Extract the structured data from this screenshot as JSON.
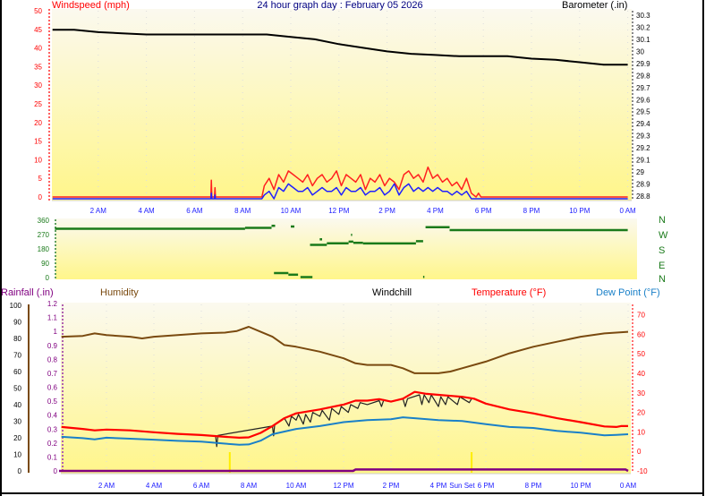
{
  "header": {
    "title": "24 hour graph day : February 05 2026",
    "windspeed_label": "Windspeed (mph)",
    "barometer_label": "Barometer (.in)"
  },
  "legend": {
    "rainfall": "Rainfall (.in)",
    "humidity": "Humidity",
    "windchill": "Windchill",
    "temperature": "Temperature (°F)",
    "dewpoint": "Dew Point (°F)"
  },
  "compass": [
    "N",
    "W",
    "S",
    "E",
    "N"
  ],
  "colors": {
    "gust": "#ff2020",
    "wind": "#2020ff",
    "barometer": "#000000",
    "direction": "#1a7a1a",
    "humidity": "#7a4a10",
    "temperature": "#ff0000",
    "dewpoint": "#1a80c8",
    "windchill": "#222222",
    "rainfall": "#800080",
    "title": "#000080",
    "time_label": "#2020ff",
    "sun": "#ffee00"
  },
  "chart_data": [
    {
      "type": "line",
      "title": "Windspeed / Barometer",
      "x_ticks": [
        "2 AM",
        "4 AM",
        "6 AM",
        "8 AM",
        "10 AM",
        "12 PM",
        "2 PM",
        "4 PM",
        "6 PM",
        "8 PM",
        "10 PM",
        "0 AM"
      ],
      "y_left": {
        "label": "Windspeed (mph)",
        "ticks": [
          "0",
          "5",
          "10",
          "15",
          "20",
          "25",
          "30",
          "35",
          "40",
          "45",
          "50"
        ],
        "range": [
          0,
          50
        ]
      },
      "y_right": {
        "label": "Barometer (.in)",
        "ticks": [
          "28.8",
          "28.9",
          "29",
          "29.1",
          "29.2",
          "29.3",
          "29.4",
          "29.5",
          "29.6",
          "29.7",
          "29.8",
          "29.9",
          "30",
          "30.1",
          "30.2",
          "30.3"
        ],
        "range": [
          28.8,
          30.3
        ]
      },
      "barometer": [
        [
          0.1,
          30.18
        ],
        [
          1,
          30.18
        ],
        [
          2,
          30.16
        ],
        [
          3,
          30.15
        ],
        [
          4,
          30.14
        ],
        [
          6,
          30.14
        ],
        [
          8,
          30.14
        ],
        [
          9,
          30.14
        ],
        [
          10,
          30.12
        ],
        [
          11,
          30.1
        ],
        [
          12,
          30.06
        ],
        [
          13,
          30.03
        ],
        [
          14,
          30.0
        ],
        [
          15,
          29.98
        ],
        [
          16,
          29.97
        ],
        [
          17,
          29.96
        ],
        [
          18,
          29.96
        ],
        [
          19,
          29.96
        ],
        [
          20,
          29.94
        ],
        [
          21,
          29.93
        ],
        [
          22,
          29.91
        ],
        [
          23,
          29.89
        ],
        [
          24,
          29.89
        ]
      ],
      "gust_start_hour": 8.9,
      "step_hours": 0.2,
      "gust": [
        3,
        5,
        2,
        6,
        4,
        7,
        6,
        5,
        4,
        6,
        3,
        5,
        6,
        4,
        5,
        7,
        3,
        6,
        5,
        4,
        6,
        2,
        5,
        4,
        6,
        3,
        5,
        4,
        2,
        6,
        7,
        5,
        6,
        4,
        8,
        5,
        6,
        4,
        5,
        3,
        4,
        2,
        5,
        1
      ],
      "wind": [
        1,
        2,
        0,
        3,
        2,
        4,
        3,
        2,
        2,
        3,
        1,
        2,
        3,
        2,
        2,
        3,
        1,
        3,
        2,
        2,
        3,
        1,
        2,
        2,
        3,
        1,
        2,
        4,
        1,
        3,
        4,
        2,
        3,
        2,
        3,
        2,
        3,
        2,
        2,
        1,
        2,
        1,
        2,
        0
      ],
      "early_spikes": [
        {
          "hour": 6.7,
          "gust": 4.5,
          "wind": 1.5
        },
        {
          "hour": 6.85,
          "gust": 2.5,
          "wind": 1
        }
      ]
    },
    {
      "type": "scatter",
      "title": "Wind Direction",
      "y_ticks": [
        "0",
        "90",
        "180",
        "270",
        "360"
      ],
      "range": [
        0,
        360
      ],
      "segments": [
        [
          0.2,
          8.1,
          306
        ],
        [
          8.1,
          9.2,
          312
        ],
        [
          9.2,
          9.35,
          325
        ],
        [
          10.0,
          10.15,
          320
        ],
        [
          10.8,
          11.5,
          205
        ],
        [
          11.5,
          12.4,
          215
        ],
        [
          12.4,
          12.6,
          225
        ],
        [
          12.6,
          13.0,
          218
        ],
        [
          13.0,
          15.2,
          214
        ],
        [
          15.2,
          15.5,
          228
        ],
        [
          15.6,
          16.6,
          316
        ],
        [
          16.6,
          24,
          298
        ],
        [
          9.3,
          9.9,
          28
        ],
        [
          9.9,
          10.3,
          18
        ],
        [
          10.4,
          10.9,
          3
        ],
        [
          11.2,
          11.3,
          240
        ],
        [
          12.5,
          12.55,
          268
        ],
        [
          15.5,
          15.55,
          4
        ]
      ]
    },
    {
      "type": "line",
      "title": "Rainfall / Humidity / Temperature",
      "x_ticks": [
        "2 AM",
        "4 AM",
        "6 AM",
        "8 AM",
        "10 AM",
        "12 PM",
        "2 PM",
        "4 PM",
        "6 PM",
        "8 PM",
        "10 PM",
        "0 AM"
      ],
      "sunset_label": "Sun Set",
      "sunrise_hour": 7.2,
      "sunset_hour": 17.4,
      "humidity_axis": {
        "ticks": [
          "0",
          "10",
          "20",
          "30",
          "40",
          "50",
          "60",
          "70",
          "80",
          "90",
          "100"
        ],
        "range": [
          0,
          100
        ]
      },
      "rain_axis": {
        "ticks": [
          "0",
          "0.1",
          "0.2",
          "0.3",
          "0.4",
          "0.5",
          "0.6",
          "0.7",
          "0.8",
          "0.9",
          "1",
          "1.1",
          "1.2"
        ],
        "range": [
          0,
          1.2
        ]
      },
      "temp_axis": {
        "ticks": [
          "-10",
          "0",
          "10",
          "20",
          "30",
          "40",
          "50",
          "60",
          "70"
        ],
        "range": [
          -10,
          70
        ]
      },
      "humidity": [
        [
          0.1,
          81
        ],
        [
          1,
          81.5
        ],
        [
          1.5,
          83
        ],
        [
          2,
          82
        ],
        [
          3,
          81
        ],
        [
          3.5,
          80
        ],
        [
          4,
          81
        ],
        [
          5,
          82
        ],
        [
          6,
          83
        ],
        [
          7,
          83.5
        ],
        [
          7.5,
          84.5
        ],
        [
          8,
          87
        ],
        [
          8.5,
          84
        ],
        [
          9,
          81
        ],
        [
          9.5,
          76
        ],
        [
          10,
          75
        ],
        [
          11,
          72
        ],
        [
          12,
          68
        ],
        [
          12.5,
          65
        ],
        [
          13,
          64
        ],
        [
          14,
          64
        ],
        [
          14.5,
          62
        ],
        [
          15,
          59
        ],
        [
          16,
          59
        ],
        [
          16.5,
          60
        ],
        [
          17,
          62
        ],
        [
          18,
          66
        ],
        [
          19,
          71
        ],
        [
          20,
          75
        ],
        [
          21,
          78
        ],
        [
          22,
          81
        ],
        [
          23,
          83
        ],
        [
          24,
          84
        ]
      ],
      "temperature": [
        [
          0.1,
          12.5
        ],
        [
          1,
          11.5
        ],
        [
          1.5,
          10.8
        ],
        [
          2,
          11.2
        ],
        [
          3,
          10.8
        ],
        [
          4,
          9.8
        ],
        [
          5,
          9
        ],
        [
          6,
          8.4
        ],
        [
          7,
          7.5
        ],
        [
          7.6,
          7
        ],
        [
          8,
          7.2
        ],
        [
          8.5,
          9.5
        ],
        [
          9,
          13
        ],
        [
          9.5,
          17
        ],
        [
          10,
          19.5
        ],
        [
          11,
          21.5
        ],
        [
          12,
          24
        ],
        [
          12.5,
          26
        ],
        [
          13,
          26
        ],
        [
          13.5,
          26.8
        ],
        [
          14,
          25.5
        ],
        [
          14.5,
          27
        ],
        [
          15,
          30.5
        ],
        [
          15.5,
          29.5
        ],
        [
          16,
          29
        ],
        [
          17,
          28
        ],
        [
          17.5,
          27
        ],
        [
          18,
          24.5
        ],
        [
          19,
          21.5
        ],
        [
          20,
          19.5
        ],
        [
          21,
          17
        ],
        [
          22,
          15
        ],
        [
          23,
          12.8
        ],
        [
          23.5,
          12.5
        ],
        [
          23.7,
          13
        ],
        [
          24,
          13
        ]
      ],
      "dewpoint": [
        [
          0.1,
          7.5
        ],
        [
          1,
          6.8
        ],
        [
          1.5,
          6.2
        ],
        [
          2,
          7
        ],
        [
          3,
          6.5
        ],
        [
          4,
          6
        ],
        [
          5,
          5.4
        ],
        [
          6,
          5
        ],
        [
          7,
          4
        ],
        [
          7.6,
          3.4
        ],
        [
          8,
          3.6
        ],
        [
          8.5,
          5.5
        ],
        [
          9,
          8.8
        ],
        [
          10,
          11.5
        ],
        [
          11,
          13
        ],
        [
          12,
          15
        ],
        [
          13,
          16
        ],
        [
          14,
          16.5
        ],
        [
          14.5,
          17.5
        ],
        [
          15,
          17
        ],
        [
          16,
          16
        ],
        [
          17,
          15.6
        ],
        [
          18,
          14
        ],
        [
          19,
          12.5
        ],
        [
          20,
          12
        ],
        [
          21,
          10.5
        ],
        [
          22,
          9.6
        ],
        [
          23,
          8.2
        ],
        [
          23.5,
          8.5
        ],
        [
          24,
          8.8
        ]
      ],
      "windchill": [
        [
          6.6,
          8.3
        ],
        [
          6.65,
          2.5
        ],
        [
          6.7,
          8.2
        ],
        [
          9,
          13
        ],
        [
          9.05,
          8
        ],
        [
          9.1,
          14
        ],
        [
          9.5,
          17
        ],
        [
          9.7,
          13
        ],
        [
          9.8,
          18
        ],
        [
          10,
          16
        ],
        [
          10.1,
          19
        ],
        [
          10.3,
          14
        ],
        [
          10.4,
          19
        ],
        [
          10.6,
          15
        ],
        [
          10.7,
          20
        ],
        [
          11,
          18
        ],
        [
          11.1,
          21
        ],
        [
          11.4,
          16
        ],
        [
          11.5,
          22
        ],
        [
          11.8,
          19
        ],
        [
          11.9,
          23
        ],
        [
          12.2,
          20
        ],
        [
          12.3,
          24
        ],
        [
          12.6,
          22
        ],
        [
          12.7,
          25
        ],
        [
          13,
          24
        ],
        [
          13.5,
          26
        ],
        [
          13.6,
          23
        ],
        [
          13.7,
          26.5
        ],
        [
          14,
          25.5
        ],
        [
          14.5,
          27
        ],
        [
          14.6,
          23
        ],
        [
          14.7,
          27
        ],
        [
          15.2,
          29
        ],
        [
          15.3,
          24
        ],
        [
          15.4,
          29
        ],
        [
          15.6,
          25
        ],
        [
          15.7,
          29
        ],
        [
          16,
          23
        ],
        [
          16.1,
          28
        ],
        [
          16.3,
          24
        ],
        [
          16.4,
          28
        ],
        [
          16.8,
          24
        ],
        [
          16.9,
          28
        ],
        [
          17.3,
          25
        ],
        [
          17.4,
          27
        ]
      ],
      "rainfall": [
        [
          0,
          0
        ],
        [
          12.4,
          0
        ],
        [
          12.5,
          0.01
        ],
        [
          23.9,
          0.01
        ],
        [
          24,
          0
        ]
      ]
    }
  ]
}
